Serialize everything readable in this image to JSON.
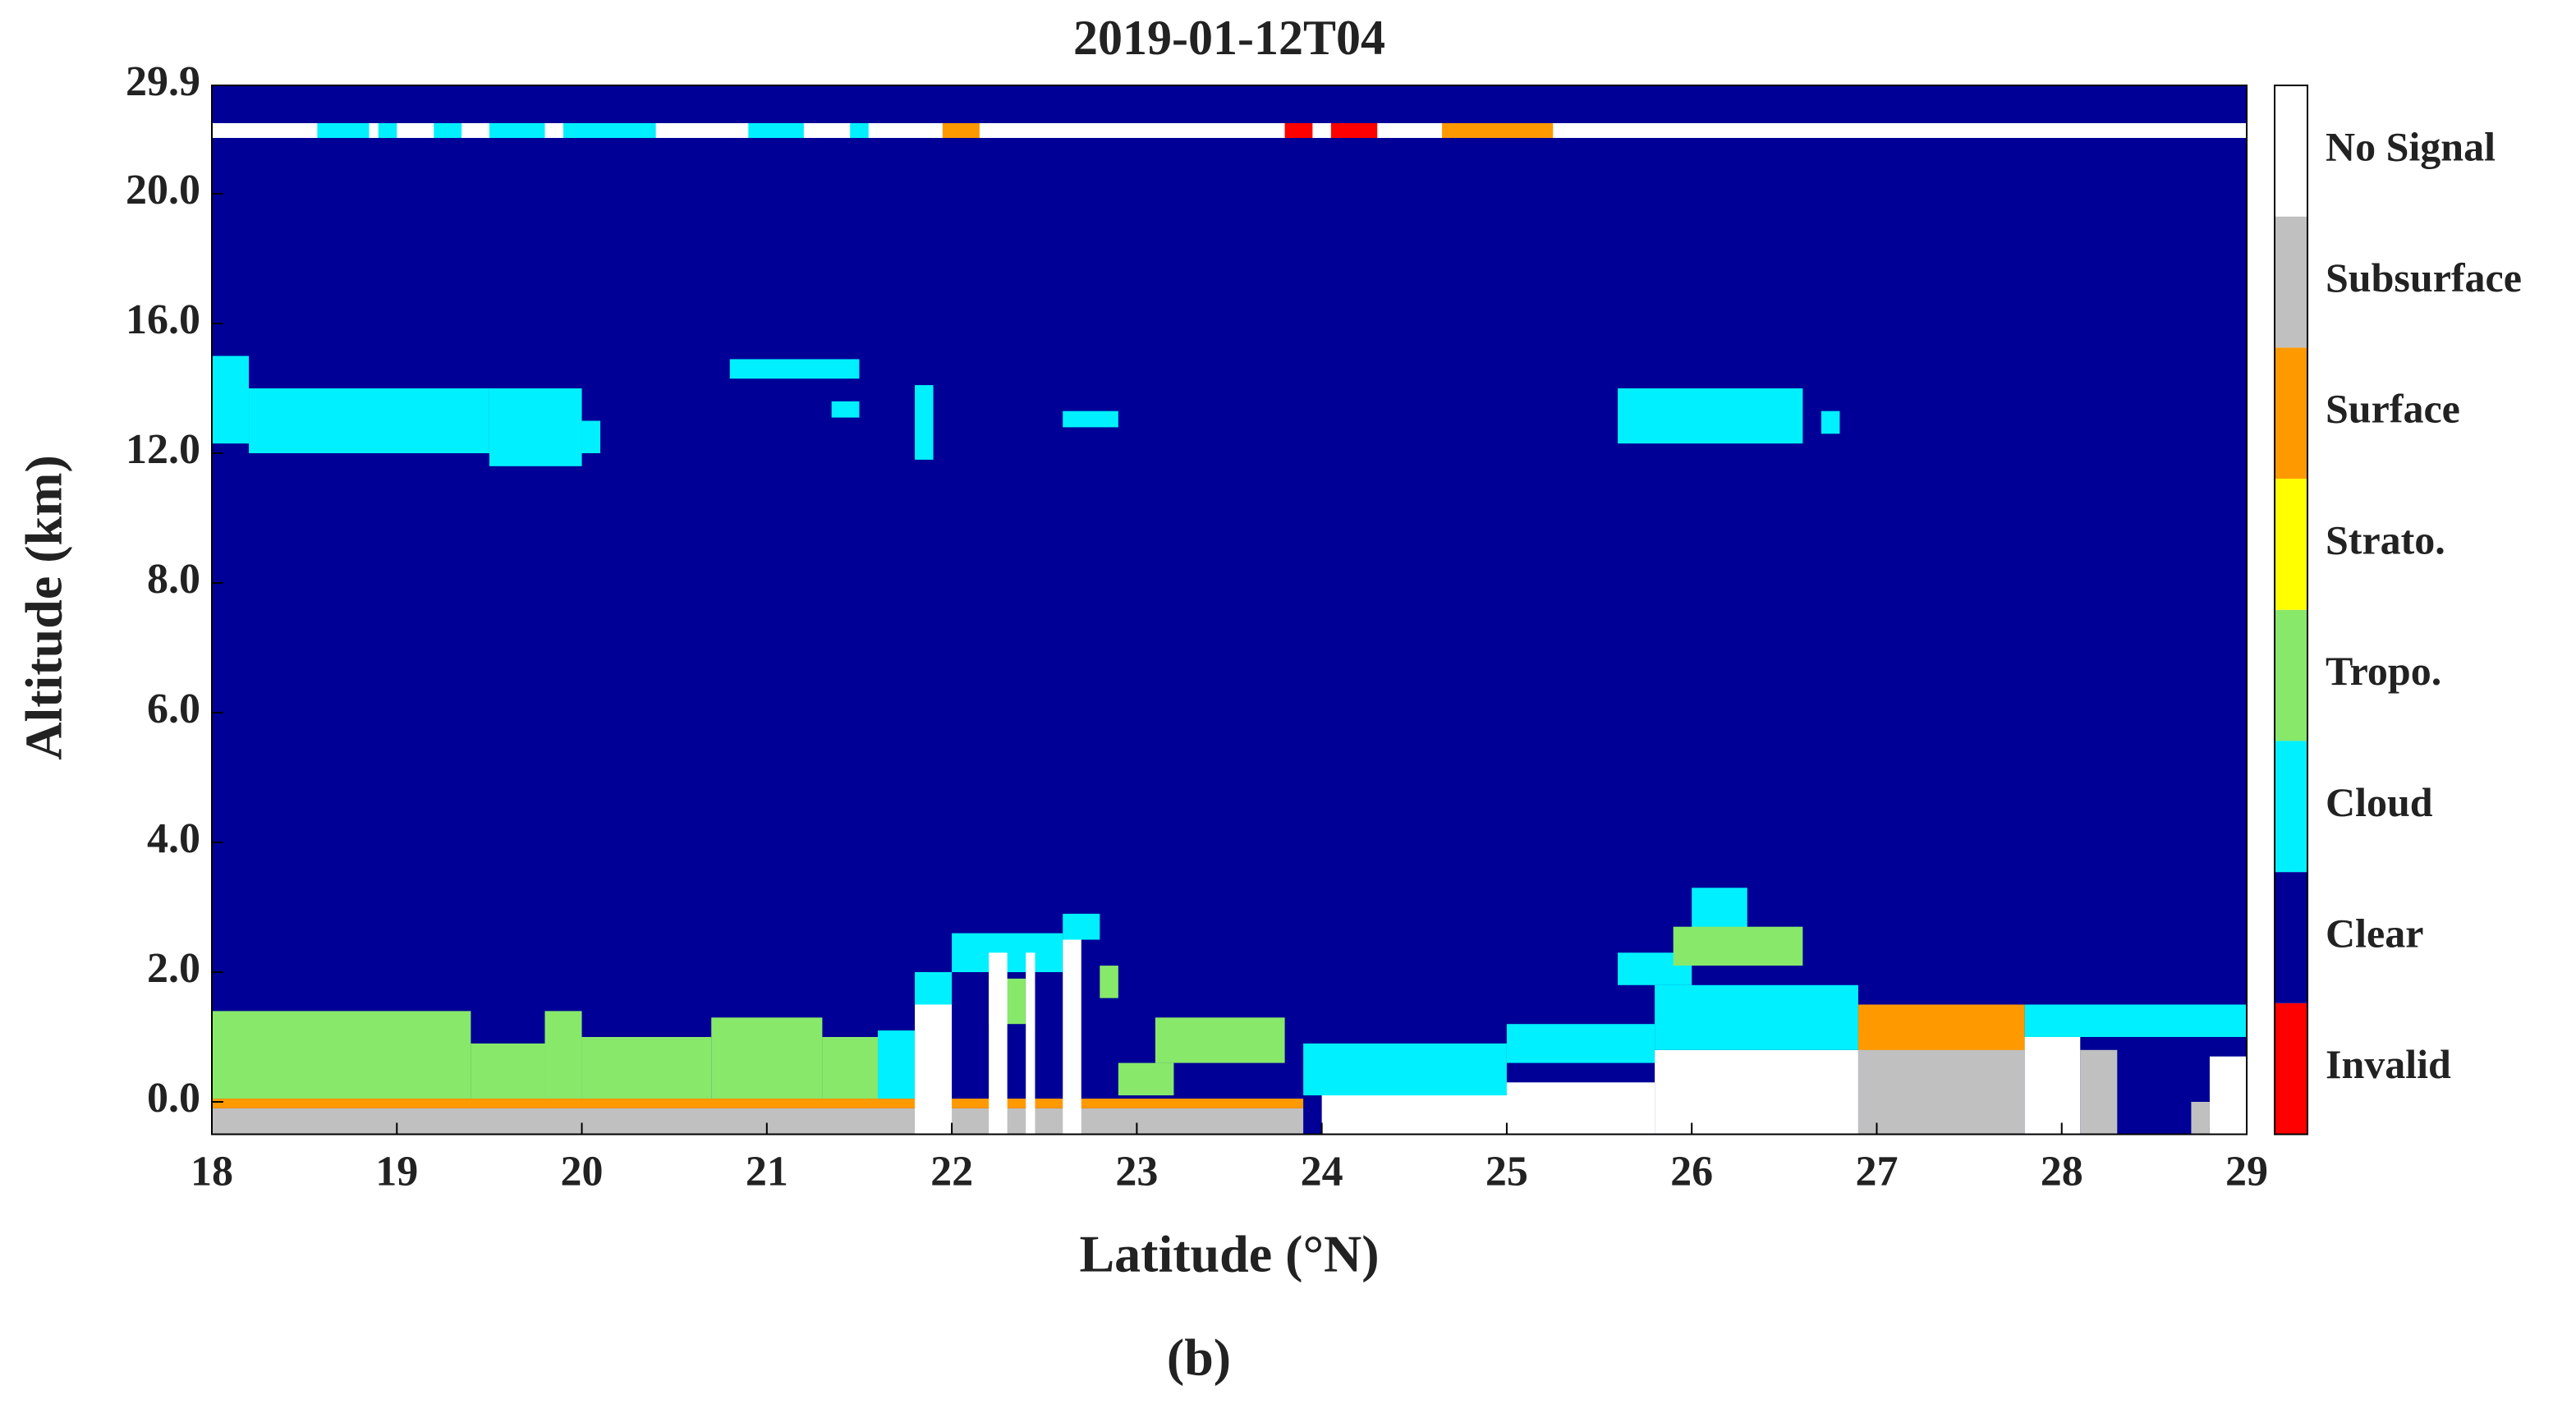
{
  "chart_data": {
    "type": "curtain",
    "title": "2019-01-12T04",
    "x_label": "Latitude (°N)",
    "y_label": "Altitude (km)",
    "caption": "(b)",
    "xlim": [
      18,
      29
    ],
    "xticks": [
      18,
      19,
      20,
      21,
      22,
      23,
      24,
      25,
      26,
      27,
      28,
      29
    ],
    "ylim": [
      -0.5,
      29.9
    ],
    "yticks": [
      {
        "value": 0,
        "label": "0.0"
      },
      {
        "value": 2,
        "label": "2.0"
      },
      {
        "value": 4,
        "label": "4.0"
      },
      {
        "value": 6,
        "label": "6.0"
      },
      {
        "value": 8,
        "label": "8.0"
      },
      {
        "value": 12,
        "label": "12.0"
      },
      {
        "value": 16,
        "label": "16.0"
      },
      {
        "value": 20,
        "label": "20.0"
      },
      29.9
    ],
    "background": "Clear",
    "classes": [
      {
        "name": "Invalid",
        "color": "#ff0000"
      },
      {
        "name": "Clear",
        "color": "#000096"
      },
      {
        "name": "Cloud",
        "color": "#00f0ff"
      },
      {
        "name": "Tropo.",
        "color": "#88e86a"
      },
      {
        "name": "Strato.",
        "color": "#ffff00"
      },
      {
        "name": "Surface",
        "color": "#ff9900"
      },
      {
        "name": "Subsurface",
        "color": "#c0c0c0"
      },
      {
        "name": "No Signal",
        "color": "#ffffff"
      }
    ],
    "features": [
      {
        "class": "No Signal",
        "lat": [
          18,
          29
        ],
        "alt": [
          25.1,
          26.45
        ]
      },
      {
        "class": "Cloud",
        "lat": [
          18.57,
          18.85
        ],
        "alt": [
          25.1,
          26.45
        ]
      },
      {
        "class": "Cloud",
        "lat": [
          18.9,
          19.0
        ],
        "alt": [
          25.1,
          26.45
        ]
      },
      {
        "class": "Cloud",
        "lat": [
          19.2,
          19.35
        ],
        "alt": [
          25.1,
          26.45
        ]
      },
      {
        "class": "Cloud",
        "lat": [
          19.5,
          19.8
        ],
        "alt": [
          25.1,
          26.45
        ]
      },
      {
        "class": "Cloud",
        "lat": [
          19.9,
          20.4
        ],
        "alt": [
          25.1,
          26.45
        ]
      },
      {
        "class": "Cloud",
        "lat": [
          20.9,
          21.2
        ],
        "alt": [
          25.1,
          26.45
        ]
      },
      {
        "class": "Cloud",
        "lat": [
          21.45,
          21.55
        ],
        "alt": [
          25.1,
          26.45
        ]
      },
      {
        "class": "Surface",
        "lat": [
          21.95,
          22.15
        ],
        "alt": [
          25.1,
          26.45
        ]
      },
      {
        "class": "Invalid",
        "lat": [
          23.8,
          23.95
        ],
        "alt": [
          25.1,
          26.45
        ]
      },
      {
        "class": "Invalid",
        "lat": [
          24.05,
          24.3
        ],
        "alt": [
          25.1,
          26.45
        ]
      },
      {
        "class": "Surface",
        "lat": [
          24.65,
          25.25
        ],
        "alt": [
          25.1,
          26.45
        ]
      },
      {
        "class": "Cloud",
        "lat": [
          18,
          18.2
        ],
        "alt": [
          12.3,
          15.0
        ]
      },
      {
        "class": "Cloud",
        "lat": [
          18.2,
          19.5
        ],
        "alt": [
          12.0,
          14.0
        ]
      },
      {
        "class": "Cloud",
        "lat": [
          19.5,
          20.0
        ],
        "alt": [
          11.6,
          14.0
        ]
      },
      {
        "class": "Cloud",
        "lat": [
          20.0,
          20.1
        ],
        "alt": [
          12.0,
          13.0
        ]
      },
      {
        "class": "Cloud",
        "lat": [
          20.8,
          21.5
        ],
        "alt": [
          14.3,
          14.9
        ]
      },
      {
        "class": "Cloud",
        "lat": [
          21.35,
          21.5
        ],
        "alt": [
          13.1,
          13.6
        ]
      },
      {
        "class": "Cloud",
        "lat": [
          21.8,
          21.9
        ],
        "alt": [
          11.8,
          14.1
        ]
      },
      {
        "class": "Cloud",
        "lat": [
          22.6,
          22.9
        ],
        "alt": [
          12.8,
          13.3
        ]
      },
      {
        "class": "Cloud",
        "lat": [
          25.6,
          26.6
        ],
        "alt": [
          12.3,
          14.0
        ]
      },
      {
        "class": "Cloud",
        "lat": [
          26.7,
          26.8
        ],
        "alt": [
          12.6,
          13.3
        ]
      },
      {
        "class": "Subsurface",
        "lat": [
          18,
          23.9
        ],
        "alt": [
          -0.5,
          -0.1
        ]
      },
      {
        "class": "Surface",
        "lat": [
          18,
          23.9
        ],
        "alt": [
          -0.1,
          0.05
        ]
      },
      {
        "class": "Tropo.",
        "lat": [
          18,
          19.4
        ],
        "alt": [
          0.05,
          1.4
        ]
      },
      {
        "class": "Tropo.",
        "lat": [
          19.4,
          19.8
        ],
        "alt": [
          0.05,
          0.9
        ]
      },
      {
        "class": "Tropo.",
        "lat": [
          19.8,
          20.0
        ],
        "alt": [
          0.05,
          1.4
        ]
      },
      {
        "class": "Tropo.",
        "lat": [
          20.0,
          20.7
        ],
        "alt": [
          0.05,
          1.0
        ]
      },
      {
        "class": "Tropo.",
        "lat": [
          20.7,
          21.3
        ],
        "alt": [
          0.05,
          1.3
        ]
      },
      {
        "class": "Tropo.",
        "lat": [
          21.3,
          21.6
        ],
        "alt": [
          0.05,
          1.0
        ]
      },
      {
        "class": "Cloud",
        "lat": [
          21.6,
          21.8
        ],
        "alt": [
          0.05,
          1.1
        ]
      },
      {
        "class": "No Signal",
        "lat": [
          21.8,
          22.0
        ],
        "alt": [
          -0.5,
          1.5
        ]
      },
      {
        "class": "Cloud",
        "lat": [
          21.8,
          22.0
        ],
        "alt": [
          1.5,
          2.0
        ]
      },
      {
        "class": "Cloud",
        "lat": [
          22.0,
          22.6
        ],
        "alt": [
          2.0,
          2.6
        ]
      },
      {
        "class": "Cloud",
        "lat": [
          22.6,
          22.8
        ],
        "alt": [
          2.5,
          2.9
        ]
      },
      {
        "class": "Tropo.",
        "lat": [
          22.2,
          22.4
        ],
        "alt": [
          1.2,
          1.9
        ]
      },
      {
        "class": "No Signal",
        "lat": [
          22.2,
          22.3
        ],
        "alt": [
          -0.5,
          2.3
        ]
      },
      {
        "class": "No Signal",
        "lat": [
          22.4,
          22.45
        ],
        "alt": [
          -0.5,
          2.3
        ]
      },
      {
        "class": "No Signal",
        "lat": [
          22.6,
          22.7
        ],
        "alt": [
          -0.5,
          2.5
        ]
      },
      {
        "class": "Tropo.",
        "lat": [
          22.8,
          22.9
        ],
        "alt": [
          1.6,
          2.1
        ]
      },
      {
        "class": "Tropo.",
        "lat": [
          22.9,
          23.2
        ],
        "alt": [
          0.1,
          0.6
        ]
      },
      {
        "class": "Tropo.",
        "lat": [
          23.1,
          23.8
        ],
        "alt": [
          0.6,
          1.3
        ]
      },
      {
        "class": "No Signal",
        "lat": [
          24.0,
          25.8
        ],
        "alt": [
          -0.5,
          0.3
        ]
      },
      {
        "class": "Cloud",
        "lat": [
          23.9,
          25.0
        ],
        "alt": [
          0.1,
          0.9
        ]
      },
      {
        "class": "Cloud",
        "lat": [
          25.0,
          25.8
        ],
        "alt": [
          0.6,
          1.2
        ]
      },
      {
        "class": "Cloud",
        "lat": [
          25.6,
          26.0
        ],
        "alt": [
          1.8,
          2.3
        ]
      },
      {
        "class": "Cloud",
        "lat": [
          26.0,
          26.3
        ],
        "alt": [
          2.5,
          3.3
        ]
      },
      {
        "class": "Tropo.",
        "lat": [
          25.9,
          26.6
        ],
        "alt": [
          2.1,
          2.7
        ]
      },
      {
        "class": "No Signal",
        "lat": [
          25.8,
          26.9
        ],
        "alt": [
          -0.5,
          0.8
        ]
      },
      {
        "class": "Cloud",
        "lat": [
          25.8,
          26.9
        ],
        "alt": [
          0.8,
          1.8
        ]
      },
      {
        "class": "Subsurface",
        "lat": [
          26.9,
          27.8
        ],
        "alt": [
          -0.5,
          1.0
        ]
      },
      {
        "class": "Surface",
        "lat": [
          26.9,
          27.8
        ],
        "alt": [
          0.8,
          1.5
        ]
      },
      {
        "class": "No Signal",
        "lat": [
          27.8,
          28.1
        ],
        "alt": [
          -0.5,
          1.0
        ]
      },
      {
        "class": "Subsurface",
        "lat": [
          28.1,
          28.3
        ],
        "alt": [
          -0.5,
          0.8
        ]
      },
      {
        "class": "Cloud",
        "lat": [
          27.8,
          29
        ],
        "alt": [
          1.0,
          1.5
        ]
      },
      {
        "class": "No Signal",
        "lat": [
          28.8,
          29
        ],
        "alt": [
          -0.5,
          0.7
        ]
      },
      {
        "class": "Subsurface",
        "lat": [
          28.7,
          28.8
        ],
        "alt": [
          -0.5,
          0.0
        ]
      }
    ]
  }
}
